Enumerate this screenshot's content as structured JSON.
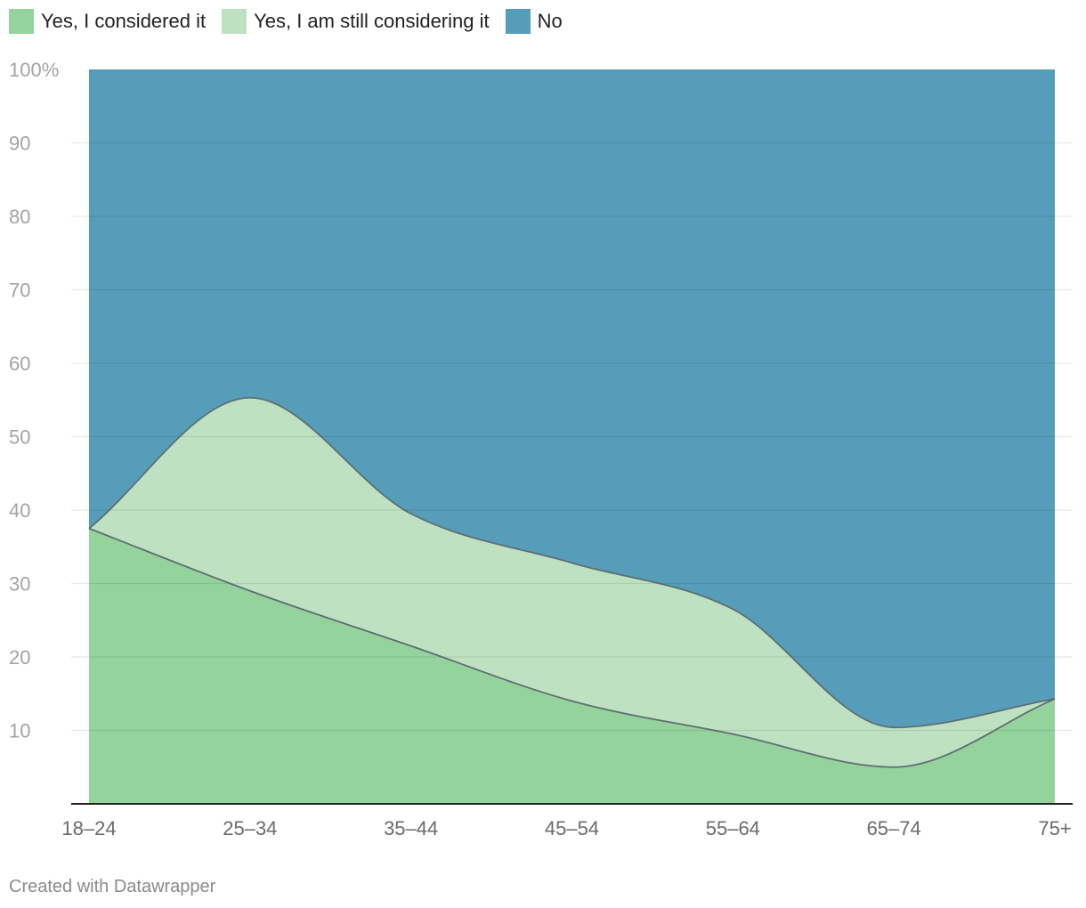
{
  "legend": {
    "items": [
      {
        "label": "Yes, I considered it",
        "color": "#94d39b"
      },
      {
        "label": "Yes, I am still considering it",
        "color": "#bee2c1"
      },
      {
        "label": "No",
        "color": "#559db8"
      }
    ]
  },
  "chart_data": {
    "type": "area",
    "stacked": true,
    "categories": [
      "18–24",
      "25–34",
      "35–44",
      "45–54",
      "55–64",
      "65–74",
      "75+"
    ],
    "series": [
      {
        "name": "Yes, I considered it",
        "values": [
          37.5,
          29,
          21.5,
          14,
          9.5,
          5,
          14.3
        ],
        "color": "#94d39b"
      },
      {
        "name": "Yes, I am still considering it",
        "values": [
          0,
          26.3,
          18,
          18.8,
          17,
          5.4,
          0
        ],
        "color": "#bee2c1"
      },
      {
        "name": "No",
        "values": [
          62.5,
          44.7,
          60.5,
          67.2,
          73.5,
          89.6,
          85.7
        ],
        "color": "#559db8"
      }
    ],
    "ylim": [
      0,
      100
    ],
    "yticks": [
      "10",
      "20",
      "30",
      "40",
      "50",
      "60",
      "70",
      "80",
      "90",
      "100%"
    ],
    "ytick_values": [
      10,
      20,
      30,
      40,
      50,
      60,
      70,
      80,
      90,
      100
    ],
    "grid": true,
    "legend_position": "top-left"
  },
  "footer": {
    "credit": "Created with Datawrapper"
  }
}
